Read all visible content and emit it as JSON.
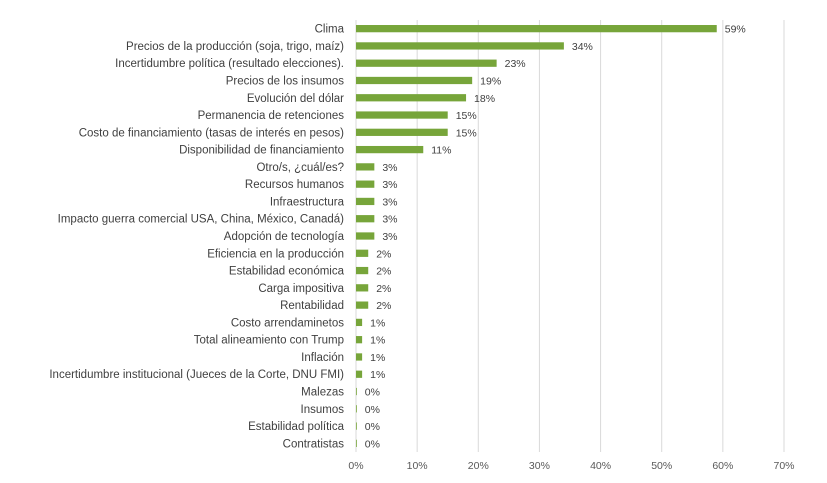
{
  "chart_data": {
    "type": "bar",
    "orientation": "horizontal",
    "categories": [
      "Clima",
      "Precios de la producción (soja, trigo, maíz)",
      "Incertidumbre política (resultado elecciones).",
      "Precios de los insumos",
      "Evolución del dólar",
      "Permanencia de retenciones",
      "Costo de financiamiento (tasas de interés en pesos)",
      "Disponibilidad de financiamiento",
      "Otro/s, ¿cuál/es?",
      "Recursos humanos",
      "Infraestructura",
      "Impacto guerra comercial USA, China, México, Canadá)",
      "Adopción de tecnología",
      "Eficiencia en la producción",
      "Estabilidad económica",
      "Carga impositiva",
      "Rentabilidad",
      "Costo arrendaminetos",
      "Total alineamiento con Trump",
      "Inflación",
      "Incertidumbre institucional (Jueces de la Corte, DNU FMI)",
      "Malezas",
      "Insumos",
      "Estabilidad política",
      "Contratistas"
    ],
    "values": [
      59,
      34,
      23,
      19,
      18,
      15,
      15,
      11,
      3,
      3,
      3,
      3,
      3,
      2,
      2,
      2,
      2,
      1,
      1,
      1,
      1,
      0,
      0,
      0,
      0
    ],
    "value_labels": [
      "59%",
      "34%",
      "23%",
      "19%",
      "18%",
      "15%",
      "15%",
      "11%",
      "3%",
      "3%",
      "3%",
      "3%",
      "3%",
      "2%",
      "2%",
      "2%",
      "2%",
      "1%",
      "1%",
      "1%",
      "1%",
      "0%",
      "0%",
      "0%",
      "0%"
    ],
    "xlim": [
      0,
      70
    ],
    "x_ticks": [
      "0%",
      "10%",
      "20%",
      "30%",
      "40%",
      "50%",
      "60%",
      "70%"
    ],
    "grid": true,
    "bar_color": "#77a53a",
    "title": "",
    "xlabel": "",
    "ylabel": ""
  }
}
